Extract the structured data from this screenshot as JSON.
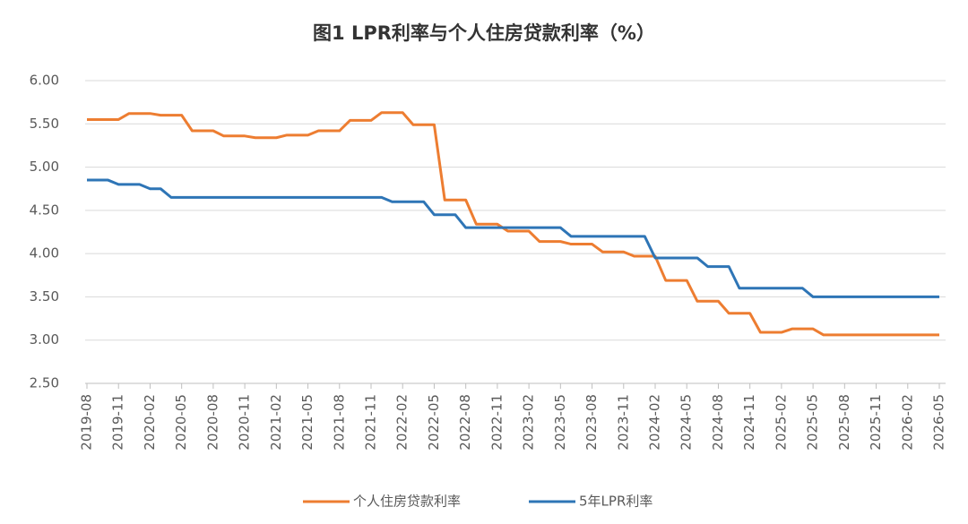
{
  "chart_data": {
    "type": "line",
    "title": "图1  LPR利率与个人住房贷款利率（%）",
    "categories": [
      "2019-08",
      null,
      null,
      "2019-11",
      null,
      null,
      "2020-02",
      null,
      null,
      "2020-05",
      null,
      null,
      "2020-08",
      null,
      null,
      "2020-11",
      null,
      null,
      "2021-02",
      null,
      null,
      "2021-05",
      null,
      null,
      "2021-08",
      null,
      null,
      "2021-11",
      null,
      null,
      "2022-02",
      null,
      null,
      "2022-05",
      null,
      null,
      "2022-08",
      null,
      null,
      "2022-11",
      null,
      null,
      "2023-02",
      null,
      null,
      "2023-05",
      null,
      null,
      "2023-08",
      null,
      null,
      "2023-11",
      null,
      null,
      "2024-02",
      null,
      null,
      "2024-05",
      null,
      null,
      "2024-08",
      null,
      null,
      "2024-11",
      null,
      null,
      "2025-02",
      null,
      null,
      "2025-05",
      null,
      null,
      "2025-08",
      null,
      null,
      "2025-11",
      null,
      null,
      "2026-02",
      null,
      null,
      "2026-05"
    ],
    "series": [
      {
        "name": "个人住房贷款利率",
        "color": "#ed7d31",
        "values": [
          5.55,
          5.55,
          5.55,
          5.55,
          5.62,
          5.62,
          5.62,
          5.6,
          5.6,
          5.6,
          5.42,
          5.42,
          5.42,
          5.36,
          5.36,
          5.36,
          5.34,
          5.34,
          5.34,
          5.37,
          5.37,
          5.37,
          5.42,
          5.42,
          5.42,
          5.54,
          5.54,
          5.54,
          5.63,
          5.63,
          5.63,
          5.49,
          5.49,
          5.49,
          4.62,
          4.62,
          4.62,
          4.34,
          4.34,
          4.34,
          4.26,
          4.26,
          4.26,
          4.14,
          4.14,
          4.14,
          4.11,
          4.11,
          4.11,
          4.02,
          4.02,
          4.02,
          3.97,
          3.97,
          3.97,
          3.69,
          3.69,
          3.69,
          3.45,
          3.45,
          3.45,
          3.31,
          3.31,
          3.31,
          3.09,
          3.09,
          3.09,
          3.13,
          3.13,
          3.13,
          3.06,
          3.06,
          3.06,
          3.06,
          3.06,
          3.06,
          3.06,
          3.06,
          3.06,
          3.06,
          3.06,
          3.06
        ]
      },
      {
        "name": "5年LPR利率",
        "color": "#2e75b6",
        "values": [
          4.85,
          4.85,
          4.85,
          4.8,
          4.8,
          4.8,
          4.75,
          4.75,
          4.65,
          4.65,
          4.65,
          4.65,
          4.65,
          4.65,
          4.65,
          4.65,
          4.65,
          4.65,
          4.65,
          4.65,
          4.65,
          4.65,
          4.65,
          4.65,
          4.65,
          4.65,
          4.65,
          4.65,
          4.65,
          4.6,
          4.6,
          4.6,
          4.6,
          4.45,
          4.45,
          4.45,
          4.3,
          4.3,
          4.3,
          4.3,
          4.3,
          4.3,
          4.3,
          4.3,
          4.3,
          4.3,
          4.2,
          4.2,
          4.2,
          4.2,
          4.2,
          4.2,
          4.2,
          4.2,
          3.95,
          3.95,
          3.95,
          3.95,
          3.95,
          3.85,
          3.85,
          3.85,
          3.6,
          3.6,
          3.6,
          3.6,
          3.6,
          3.6,
          3.6,
          3.5,
          3.5,
          3.5,
          3.5,
          3.5,
          3.5,
          3.5,
          3.5,
          3.5,
          3.5,
          3.5,
          3.5,
          3.5
        ]
      }
    ],
    "ylim": [
      2.5,
      6
    ],
    "yticks": [
      {
        "value": 2.5,
        "label": "2.50"
      },
      {
        "value": 3,
        "label": "3.00"
      },
      {
        "value": 3.5,
        "label": "3.50"
      },
      {
        "value": 4,
        "label": "4.00"
      },
      {
        "value": 4.5,
        "label": "4.50"
      },
      {
        "value": 5,
        "label": "5.00"
      },
      {
        "value": 5.5,
        "label": "5.50"
      },
      {
        "value": 6,
        "label": "6.00"
      }
    ],
    "grid": true,
    "legend": "bottom"
  }
}
